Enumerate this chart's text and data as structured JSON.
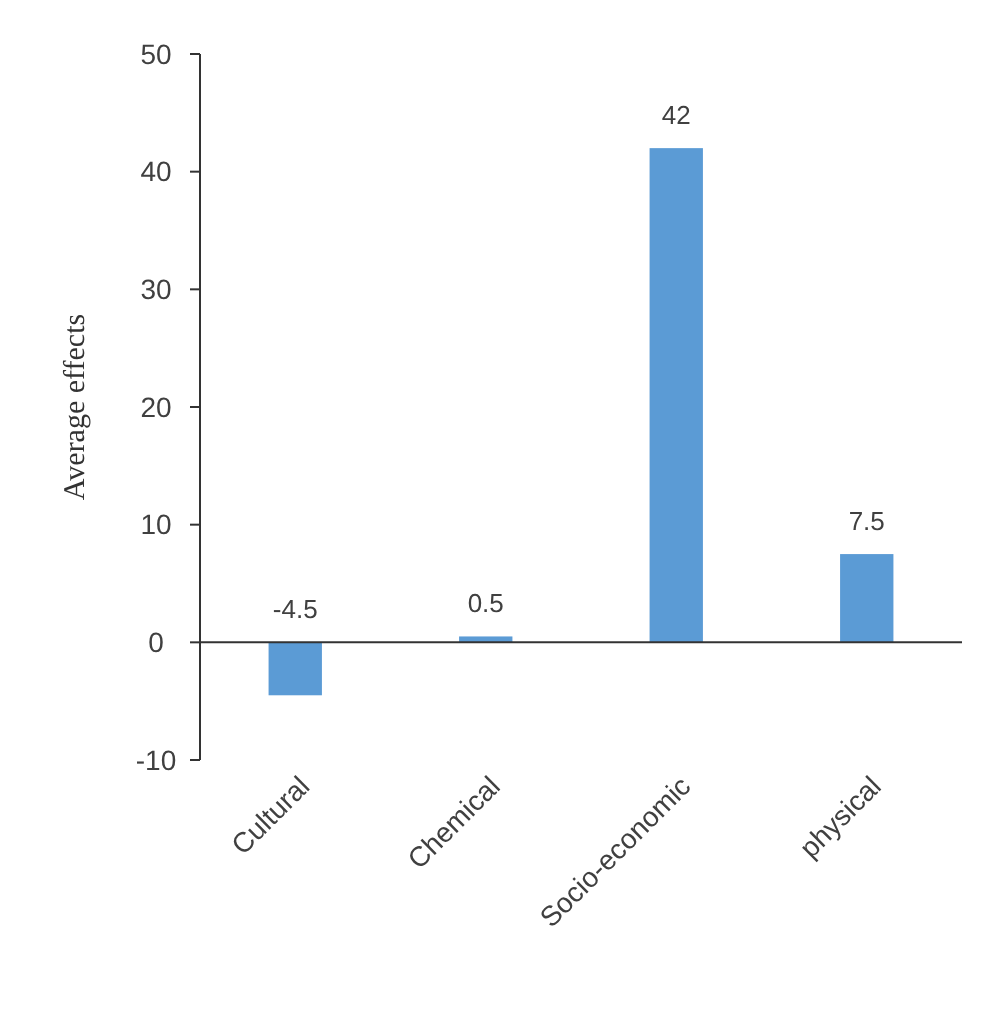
{
  "chart_data": {
    "type": "bar",
    "ylabel": "Average effects",
    "categories": [
      "Cultural",
      "Chemical",
      "Socio-economic",
      "physical"
    ],
    "values": [
      -4.5,
      0.5,
      42,
      7.5
    ],
    "color": "#5b9bd5",
    "ylim": [
      -10,
      50
    ],
    "yticks": [
      -10,
      0,
      10,
      20,
      30,
      40,
      50
    ],
    "data_labels": true
  }
}
